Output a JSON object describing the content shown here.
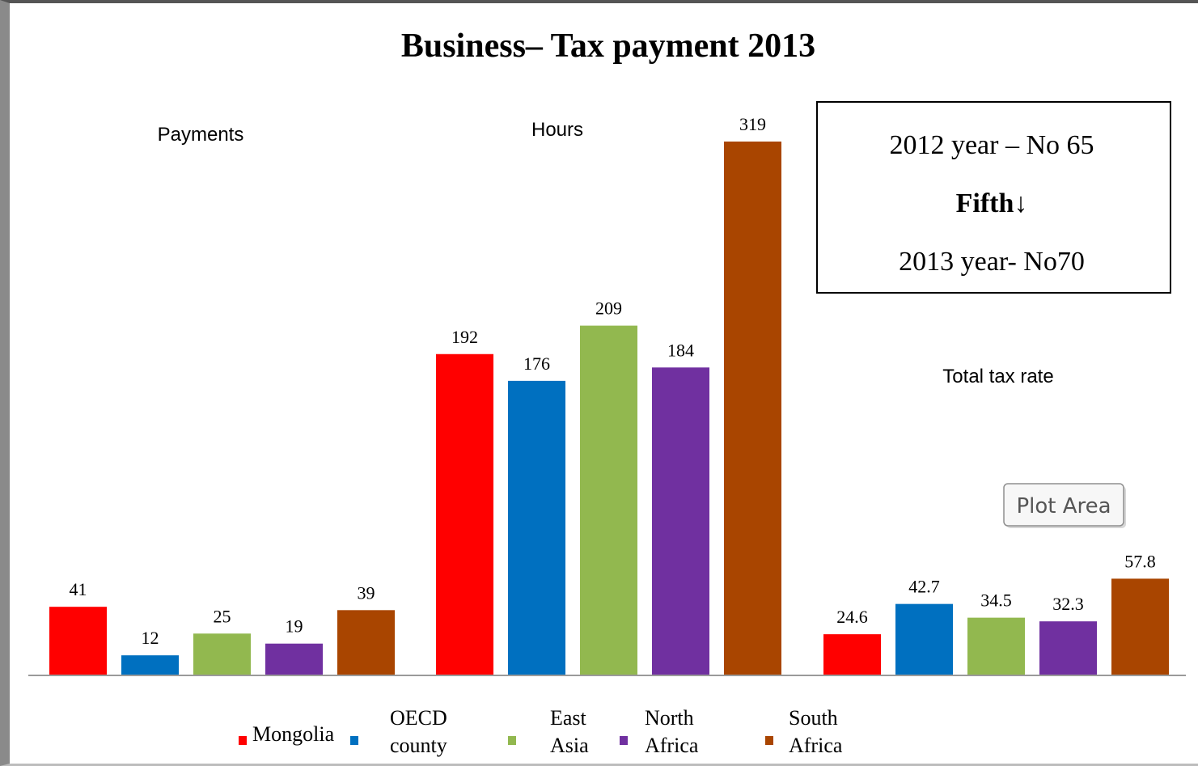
{
  "chart_data": {
    "type": "bar",
    "title": "Business– Tax payment 2013",
    "groups": [
      {
        "label": "Payments",
        "values": [
          41,
          12,
          25,
          19,
          39
        ],
        "value_labels": [
          "41",
          "12",
          "25",
          "19",
          "39"
        ]
      },
      {
        "label": "Hours",
        "values": [
          192,
          176,
          209,
          184,
          319
        ],
        "value_labels": [
          "192",
          "176",
          "209",
          "184",
          "319"
        ]
      },
      {
        "label": "Total tax rate",
        "values": [
          24.6,
          42.7,
          34.5,
          32.3,
          57.8
        ],
        "value_labels": [
          "24.6",
          "42.7",
          "34.5",
          "32.3",
          "57.8"
        ]
      }
    ],
    "series": [
      {
        "name": "Mongolia",
        "color": "#ff0000"
      },
      {
        "name": "OECD county",
        "color": "#0070c0"
      },
      {
        "name": "East Asia",
        "color": "#92b84f"
      },
      {
        "name": "North Africa",
        "color": "#7030a0"
      },
      {
        "name": "South Africa",
        "color": "#a94500"
      }
    ],
    "ylim": [
      0,
      319
    ],
    "grid": false,
    "legend_position": "bottom"
  },
  "legend_lines": [
    [
      "Mongolia"
    ],
    [
      "OECD",
      "county"
    ],
    [
      "East",
      "Asia"
    ],
    [
      "North",
      "Africa"
    ],
    [
      "South",
      "Africa"
    ]
  ],
  "info_box": {
    "line1": "2012 year – No 65",
    "line2": "Fifth↓",
    "line3": "2013 year- No70"
  },
  "tooltip": {
    "label": "Plot Area"
  }
}
